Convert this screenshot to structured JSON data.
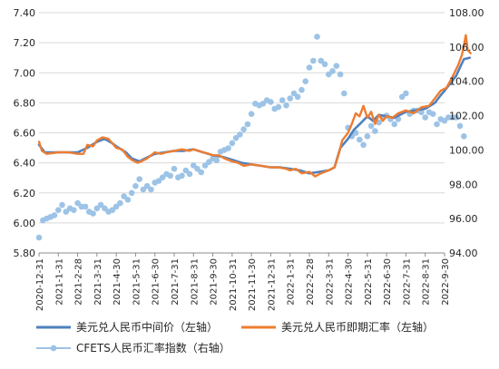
{
  "chart_data": {
    "type": "line",
    "x_categories": [
      "2020-12-31",
      "2021-1-31",
      "2021-2-28",
      "2021-3-31",
      "2021-4-30",
      "2021-5-31",
      "2021-6-30",
      "2021-7-31",
      "2021-8-31",
      "2021-9-30",
      "2021-10-31",
      "2021-11-30",
      "2021-12-31",
      "2022-1-31",
      "2022-2-28",
      "2022-3-31",
      "2022-4-30",
      "2022-5-31",
      "2022-6-30",
      "2022-7-31",
      "2022-8-31",
      "2022-9-30"
    ],
    "y_left": {
      "min": 5.8,
      "max": 7.4,
      "step": 0.2,
      "ticks": [
        "5.80",
        "6.00",
        "6.20",
        "6.40",
        "6.60",
        "6.80",
        "7.00",
        "7.20",
        "7.40"
      ]
    },
    "y_right": {
      "min": 94,
      "max": 108,
      "step": 2,
      "ticks": [
        "94.00",
        "96.00",
        "98.00",
        "100.00",
        "102.00",
        "104.00",
        "106.00",
        "108.00"
      ]
    },
    "legend": [
      "美元兑人民币中间价（左轴）",
      "美元兑人民币即期汇率（左轴）",
      "CFETS人民币汇率指数（右轴）"
    ],
    "series": [
      {
        "name": "美元兑人民币中间价（左轴）",
        "axis": "left",
        "style": "line",
        "color": "#4f81bd",
        "points": [
          [
            0,
            6.52
          ],
          [
            0.3,
            6.47
          ],
          [
            1,
            6.47
          ],
          [
            1.5,
            6.47
          ],
          [
            2,
            6.47
          ],
          [
            2.5,
            6.5
          ],
          [
            3,
            6.54
          ],
          [
            3.4,
            6.56
          ],
          [
            3.8,
            6.53
          ],
          [
            4,
            6.51
          ],
          [
            4.5,
            6.47
          ],
          [
            4.8,
            6.43
          ],
          [
            5.2,
            6.41
          ],
          [
            5.5,
            6.43
          ],
          [
            6,
            6.46
          ],
          [
            6.5,
            6.47
          ],
          [
            7,
            6.48
          ],
          [
            7.5,
            6.48
          ],
          [
            8,
            6.49
          ],
          [
            8.5,
            6.47
          ],
          [
            9,
            6.45
          ],
          [
            9.5,
            6.44
          ],
          [
            10,
            6.42
          ],
          [
            10.5,
            6.4
          ],
          [
            11,
            6.39
          ],
          [
            11.5,
            6.38
          ],
          [
            12,
            6.37
          ],
          [
            12.5,
            6.37
          ],
          [
            13,
            6.36
          ],
          [
            13.5,
            6.35
          ],
          [
            14,
            6.33
          ],
          [
            14.5,
            6.34
          ],
          [
            15,
            6.35
          ],
          [
            15.3,
            6.37
          ],
          [
            15.6,
            6.5
          ],
          [
            16,
            6.56
          ],
          [
            16.3,
            6.62
          ],
          [
            16.7,
            6.67
          ],
          [
            17,
            6.71
          ],
          [
            17.3,
            6.68
          ],
          [
            17.6,
            6.72
          ],
          [
            18,
            6.71
          ],
          [
            18.4,
            6.7
          ],
          [
            18.7,
            6.72
          ],
          [
            19,
            6.74
          ],
          [
            19.5,
            6.75
          ],
          [
            20,
            6.76
          ],
          [
            20.5,
            6.8
          ],
          [
            20.8,
            6.85
          ],
          [
            21,
            6.88
          ],
          [
            21.3,
            6.93
          ],
          [
            21.6,
            6.98
          ],
          [
            21.85,
            7.05
          ],
          [
            22,
            7.09
          ],
          [
            22.3,
            7.1
          ]
        ]
      },
      {
        "name": "美元兑人民币即期汇率（左轴）",
        "axis": "left",
        "style": "line",
        "color": "#ed7d31",
        "points": [
          [
            0,
            6.54
          ],
          [
            0.15,
            6.48
          ],
          [
            0.4,
            6.46
          ],
          [
            1,
            6.47
          ],
          [
            1.5,
            6.47
          ],
          [
            2,
            6.46
          ],
          [
            2.3,
            6.46
          ],
          [
            2.5,
            6.52
          ],
          [
            2.8,
            6.51
          ],
          [
            3,
            6.55
          ],
          [
            3.3,
            6.57
          ],
          [
            3.6,
            6.56
          ],
          [
            3.8,
            6.53
          ],
          [
            4,
            6.5
          ],
          [
            4.3,
            6.49
          ],
          [
            4.6,
            6.44
          ],
          [
            4.8,
            6.42
          ],
          [
            5.1,
            6.4
          ],
          [
            5.3,
            6.41
          ],
          [
            5.6,
            6.43
          ],
          [
            6,
            6.47
          ],
          [
            6.3,
            6.46
          ],
          [
            6.6,
            6.47
          ],
          [
            7,
            6.48
          ],
          [
            7.4,
            6.49
          ],
          [
            7.8,
            6.48
          ],
          [
            8,
            6.49
          ],
          [
            8.5,
            6.47
          ],
          [
            8.8,
            6.46
          ],
          [
            9,
            6.45
          ],
          [
            9.3,
            6.45
          ],
          [
            9.6,
            6.43
          ],
          [
            10,
            6.41
          ],
          [
            10.3,
            6.4
          ],
          [
            10.6,
            6.38
          ],
          [
            11,
            6.39
          ],
          [
            11.5,
            6.38
          ],
          [
            12,
            6.37
          ],
          [
            12.4,
            6.37
          ],
          [
            12.8,
            6.36
          ],
          [
            13,
            6.35
          ],
          [
            13.3,
            6.36
          ],
          [
            13.6,
            6.33
          ],
          [
            14,
            6.34
          ],
          [
            14.3,
            6.31
          ],
          [
            14.6,
            6.33
          ],
          [
            15,
            6.35
          ],
          [
            15.3,
            6.37
          ],
          [
            15.5,
            6.45
          ],
          [
            15.7,
            6.55
          ],
          [
            16,
            6.6
          ],
          [
            16.2,
            6.66
          ],
          [
            16.4,
            6.73
          ],
          [
            16.6,
            6.71
          ],
          [
            16.8,
            6.78
          ],
          [
            17,
            6.7
          ],
          [
            17.2,
            6.74
          ],
          [
            17.4,
            6.66
          ],
          [
            17.6,
            6.72
          ],
          [
            17.8,
            6.68
          ],
          [
            18,
            6.71
          ],
          [
            18.3,
            6.7
          ],
          [
            18.6,
            6.73
          ],
          [
            19,
            6.75
          ],
          [
            19.4,
            6.73
          ],
          [
            19.8,
            6.77
          ],
          [
            20.2,
            6.78
          ],
          [
            20.5,
            6.83
          ],
          [
            20.8,
            6.88
          ],
          [
            21.1,
            6.9
          ],
          [
            21.4,
            6.97
          ],
          [
            21.7,
            7.05
          ],
          [
            21.9,
            7.12
          ],
          [
            22,
            7.18
          ],
          [
            22.1,
            7.25
          ],
          [
            22.2,
            7.15
          ],
          [
            22.35,
            7.13
          ]
        ]
      },
      {
        "name": "CFETS人民币汇率指数（右轴）",
        "axis": "right",
        "style": "scatter",
        "color": "#9dc3e6",
        "points": [
          [
            0,
            94.9
          ],
          [
            0.2,
            95.9
          ],
          [
            0.4,
            96.0
          ],
          [
            0.6,
            96.1
          ],
          [
            0.8,
            96.2
          ],
          [
            1,
            96.5
          ],
          [
            1.2,
            96.8
          ],
          [
            1.4,
            96.4
          ],
          [
            1.6,
            96.6
          ],
          [
            1.8,
            96.5
          ],
          [
            2,
            96.9
          ],
          [
            2.2,
            96.7
          ],
          [
            2.4,
            96.7
          ],
          [
            2.6,
            96.4
          ],
          [
            2.8,
            96.3
          ],
          [
            3,
            96.6
          ],
          [
            3.2,
            96.8
          ],
          [
            3.4,
            96.6
          ],
          [
            3.6,
            96.4
          ],
          [
            3.8,
            96.5
          ],
          [
            4,
            96.7
          ],
          [
            4.2,
            96.9
          ],
          [
            4.4,
            97.3
          ],
          [
            4.6,
            97.1
          ],
          [
            4.8,
            97.5
          ],
          [
            5,
            97.9
          ],
          [
            5.2,
            98.3
          ],
          [
            5.4,
            97.7
          ],
          [
            5.6,
            97.9
          ],
          [
            5.8,
            97.7
          ],
          [
            6,
            98.1
          ],
          [
            6.2,
            98.2
          ],
          [
            6.4,
            98.4
          ],
          [
            6.6,
            98.6
          ],
          [
            6.8,
            98.5
          ],
          [
            7,
            98.9
          ],
          [
            7.2,
            98.4
          ],
          [
            7.4,
            98.5
          ],
          [
            7.6,
            98.8
          ],
          [
            7.8,
            98.6
          ],
          [
            8,
            99.1
          ],
          [
            8.2,
            98.9
          ],
          [
            8.4,
            98.7
          ],
          [
            8.6,
            99.1
          ],
          [
            8.8,
            99.3
          ],
          [
            9,
            99.5
          ],
          [
            9.2,
            99.4
          ],
          [
            9.4,
            99.9
          ],
          [
            9.6,
            100.0
          ],
          [
            9.8,
            100.1
          ],
          [
            10,
            100.4
          ],
          [
            10.2,
            100.7
          ],
          [
            10.4,
            100.9
          ],
          [
            10.6,
            101.2
          ],
          [
            10.8,
            101.5
          ],
          [
            11,
            102.1
          ],
          [
            11.2,
            102.7
          ],
          [
            11.4,
            102.6
          ],
          [
            11.6,
            102.7
          ],
          [
            11.8,
            102.9
          ],
          [
            12,
            102.8
          ],
          [
            12.2,
            102.4
          ],
          [
            12.4,
            102.5
          ],
          [
            12.6,
            102.9
          ],
          [
            12.8,
            102.6
          ],
          [
            13,
            103.0
          ],
          [
            13.2,
            103.3
          ],
          [
            13.4,
            103.1
          ],
          [
            13.6,
            103.5
          ],
          [
            13.8,
            104.0
          ],
          [
            14,
            104.8
          ],
          [
            14.2,
            105.2
          ],
          [
            14.4,
            106.6
          ],
          [
            14.6,
            105.2
          ],
          [
            14.8,
            105.0
          ],
          [
            15,
            104.4
          ],
          [
            15.2,
            104.6
          ],
          [
            15.4,
            104.9
          ],
          [
            15.6,
            104.4
          ],
          [
            15.8,
            103.3
          ],
          [
            16,
            101.3
          ],
          [
            16.2,
            100.8
          ],
          [
            16.4,
            101.0
          ],
          [
            16.6,
            100.6
          ],
          [
            16.8,
            100.3
          ],
          [
            17,
            100.8
          ],
          [
            17.2,
            101.4
          ],
          [
            17.4,
            101.1
          ],
          [
            17.6,
            101.6
          ],
          [
            17.8,
            101.9
          ],
          [
            18,
            102.0
          ],
          [
            18.2,
            101.8
          ],
          [
            18.4,
            101.5
          ],
          [
            18.6,
            101.8
          ],
          [
            18.8,
            103.1
          ],
          [
            19,
            103.3
          ],
          [
            19.2,
            102.1
          ],
          [
            19.4,
            102.3
          ],
          [
            19.6,
            102.3
          ],
          [
            19.8,
            102.2
          ],
          [
            20,
            101.9
          ],
          [
            20.2,
            102.2
          ],
          [
            20.4,
            102.1
          ],
          [
            20.6,
            101.5
          ],
          [
            20.8,
            101.8
          ],
          [
            21,
            101.7
          ],
          [
            21.2,
            101.9
          ],
          [
            21.4,
            101.9
          ],
          [
            21.6,
            101.9
          ],
          [
            21.8,
            101.4
          ],
          [
            22,
            100.8
          ]
        ]
      }
    ]
  }
}
